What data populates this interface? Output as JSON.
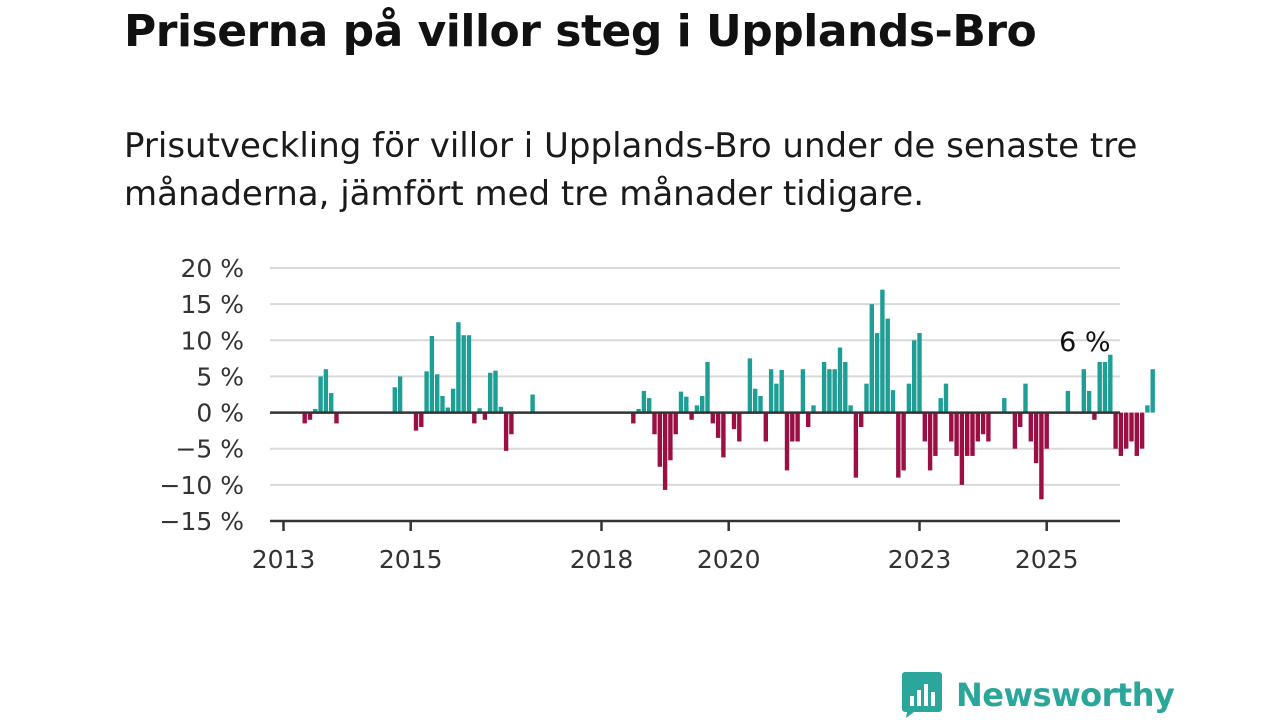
{
  "title": "Priserna på villor steg i Upplands-Bro",
  "subtitle": "Prisutveckling för villor i Upplands-Bro under de senaste tre månaderna, jämfört med tre månader tidigare.",
  "colors": {
    "positive": "#1f9e96",
    "negative": "#9b0f45",
    "logo": "#2aa69b"
  },
  "logo": {
    "text": "Newsworthy",
    "icon": "bar-chart-speech-bubble-icon"
  },
  "chart_data": {
    "type": "bar",
    "title": "Priserna på villor steg i Upplands-Bro",
    "xlabel": "",
    "ylabel": "",
    "ylim": [
      -15,
      20
    ],
    "y_ticks": [
      20,
      15,
      10,
      5,
      0,
      -5,
      -10,
      -15
    ],
    "y_tick_labels": [
      "20 %",
      "15 %",
      "10 %",
      "5 %",
      "0 %",
      "−5 %",
      "−10 %",
      "−15 %"
    ],
    "x_ticks": [
      {
        "label": "2013",
        "value": "2013-01"
      },
      {
        "label": "2015",
        "value": "2015-01"
      },
      {
        "label": "2018",
        "value": "2018-01"
      },
      {
        "label": "2020",
        "value": "2020-01"
      },
      {
        "label": "2023",
        "value": "2023-01"
      },
      {
        "label": "2025",
        "value": "2025-01"
      }
    ],
    "grid": true,
    "annotation": {
      "text": "6 %",
      "value": "2025-08"
    },
    "unit": "%",
    "x_start": "2013-01",
    "values": [
      null,
      null,
      null,
      null,
      -1.5,
      -1,
      0.5,
      5,
      6,
      2.7,
      -1.5,
      null,
      null,
      null,
      null,
      null,
      null,
      null,
      null,
      null,
      null,
      3.5,
      5,
      null,
      null,
      -2.5,
      -2,
      5.7,
      10.6,
      5.3,
      2.3,
      0.7,
      3.3,
      12.5,
      10.7,
      10.7,
      -1.5,
      0.6,
      -1,
      5.5,
      5.8,
      0.8,
      -5.3,
      -3,
      null,
      null,
      null,
      2.5,
      null,
      null,
      null,
      null,
      null,
      null,
      null,
      null,
      null,
      null,
      null,
      null,
      null,
      null,
      null,
      null,
      null,
      null,
      -1.5,
      0.5,
      3,
      2,
      -3,
      -7.5,
      -10.7,
      -6.6,
      -3,
      2.9,
      2.2,
      -1,
      1,
      2.3,
      7,
      -1.5,
      -3.5,
      -6.2,
      null,
      -2.3,
      -4,
      null,
      7.5,
      3.3,
      2.3,
      -4,
      6,
      4,
      5.9,
      -8,
      -4,
      -4,
      6,
      -2,
      1,
      null,
      7,
      6,
      6,
      9,
      7,
      1,
      -9,
      -2,
      4,
      15,
      11,
      17,
      13,
      3.1,
      -9,
      -8,
      4,
      10,
      11,
      -4,
      -8,
      -6,
      2,
      4,
      -4,
      -6,
      -10,
      -6,
      -6,
      -4,
      -3,
      -4,
      null,
      null,
      2,
      null,
      -5,
      -2,
      4,
      -4,
      -7,
      -12,
      -5,
      null,
      null,
      null,
      3,
      null,
      null,
      6,
      3,
      -1,
      7,
      7,
      8,
      -5,
      -6,
      -5,
      -4,
      -6,
      -5,
      1,
      6
    ]
  }
}
